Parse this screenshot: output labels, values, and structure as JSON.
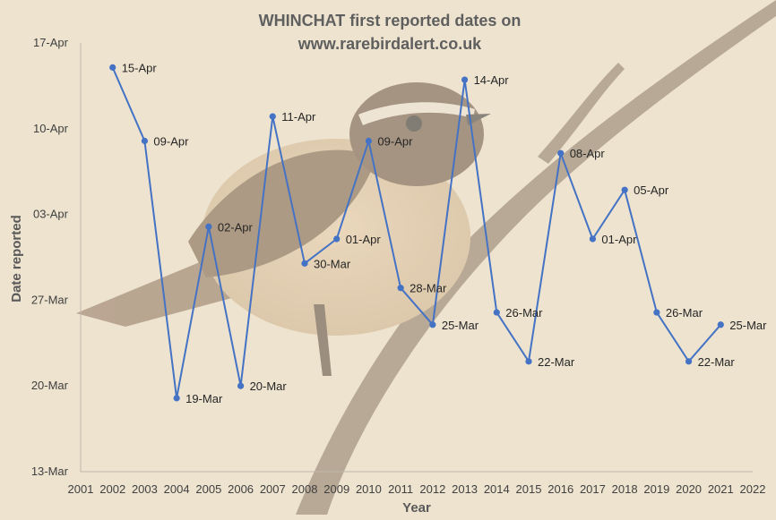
{
  "chart_data": {
    "type": "line",
    "title": "WHINCHAT first reported dates on",
    "subtitle": "www.rarebirdalert.co.uk",
    "xlabel": "Year",
    "ylabel": "Date reported",
    "xlim": [
      2001,
      2022
    ],
    "x_ticks": [
      "2001",
      "2002",
      "2003",
      "2004",
      "2005",
      "2006",
      "2007",
      "2008",
      "2009",
      "2010",
      "2011",
      "2012",
      "2013",
      "2014",
      "2015",
      "2016",
      "2017",
      "2018",
      "2019",
      "2020",
      "2021",
      "2022"
    ],
    "ylim": [
      "13-Mar",
      "17-Apr"
    ],
    "y_ticks": [
      "13-Mar",
      "20-Mar",
      "27-Mar",
      "03-Apr",
      "10-Apr",
      "17-Apr"
    ],
    "series": [
      {
        "color": "#4472c4",
        "x": [
          2002,
          2003,
          2004,
          2005,
          2006,
          2007,
          2008,
          2009,
          2010,
          2011,
          2012,
          2013,
          2014,
          2015,
          2016,
          2017,
          2018,
          2019,
          2020,
          2021
        ],
        "values": [
          "15-Apr",
          "09-Apr",
          "19-Mar",
          "02-Apr",
          "20-Mar",
          "11-Apr",
          "30-Mar",
          "01-Apr",
          "09-Apr",
          "28-Mar",
          "25-Mar",
          "14-Apr",
          "26-Mar",
          "22-Mar",
          "08-Apr",
          "01-Apr",
          "05-Apr",
          "26-Mar",
          "22-Mar",
          "25-Mar"
        ]
      }
    ],
    "data_labels": true,
    "grid": false,
    "legend": "none"
  }
}
